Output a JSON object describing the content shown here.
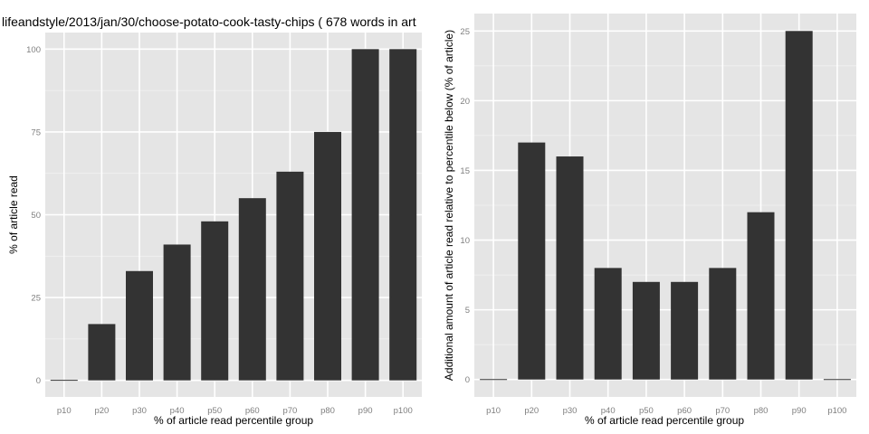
{
  "colors": {
    "panel_background": "#e5e5e5",
    "grid_major": "#ffffff",
    "grid_minor": "#f2f2f2",
    "bar_fill": "#333333",
    "tick_text": "#7f7f7f",
    "text": "#000000"
  },
  "chart_data": [
    {
      "type": "bar",
      "title": "lifeandstyle/2013/jan/30/choose-potato-cook-tasty-chips ( 678 words in art",
      "xlabel": "% of article read percentile group",
      "ylabel": "% of article read",
      "categories": [
        "p10",
        "p20",
        "p30",
        "p40",
        "p50",
        "p60",
        "p70",
        "p80",
        "p90",
        "p100"
      ],
      "values": [
        0,
        17,
        33,
        41,
        48,
        55,
        63,
        75,
        100,
        100
      ],
      "ylim": [
        -5,
        105
      ],
      "yticks": [
        0,
        25,
        50,
        75,
        100
      ],
      "grid": true,
      "legend": "none"
    },
    {
      "type": "bar",
      "title": "",
      "xlabel": "% of article read percentile group",
      "ylabel": "Additional amount of article read relative to percentile below (% of article)",
      "categories": [
        "p10",
        "p20",
        "p30",
        "p40",
        "p50",
        "p60",
        "p70",
        "p80",
        "p90",
        "p100"
      ],
      "values": [
        0,
        17,
        16,
        8,
        7,
        7,
        8,
        12,
        25,
        0
      ],
      "ylim": [
        -1.25,
        26.25
      ],
      "yticks": [
        0,
        5,
        10,
        15,
        20,
        25
      ],
      "grid": true,
      "legend": "none"
    }
  ]
}
